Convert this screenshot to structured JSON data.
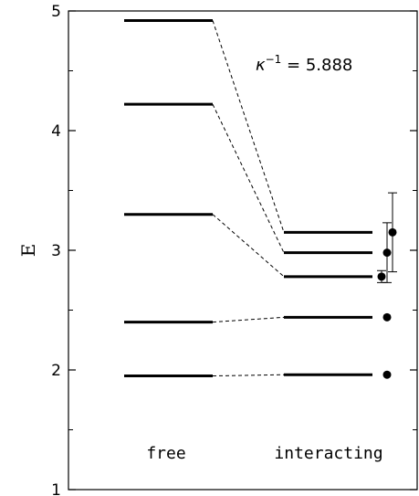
{
  "chart_data": {
    "type": "scatter",
    "ylabel": "E",
    "ylim": [
      1,
      5
    ],
    "y_ticks": [
      "1",
      "2",
      "3",
      "4",
      "5"
    ],
    "annotation": {
      "symbol": "κ",
      "exponent": "−1",
      "text": " = 5.888"
    },
    "groups": [
      {
        "label": "free",
        "levels": [
          1.95,
          2.4,
          3.3,
          4.22,
          4.92
        ]
      },
      {
        "label": "interacting",
        "levels": [
          1.96,
          2.44,
          2.78,
          2.98,
          3.15
        ]
      }
    ],
    "connections": [
      [
        0,
        0
      ],
      [
        1,
        1
      ],
      [
        2,
        2
      ],
      [
        3,
        3
      ],
      [
        4,
        4
      ]
    ],
    "points": [
      {
        "y": 2.78,
        "err": 0.05
      },
      {
        "y": 2.98,
        "err": 0.25
      },
      {
        "y": 3.15,
        "err": 0.33
      },
      {
        "y": 2.44,
        "err": null
      },
      {
        "y": 1.96,
        "err": null
      }
    ]
  }
}
